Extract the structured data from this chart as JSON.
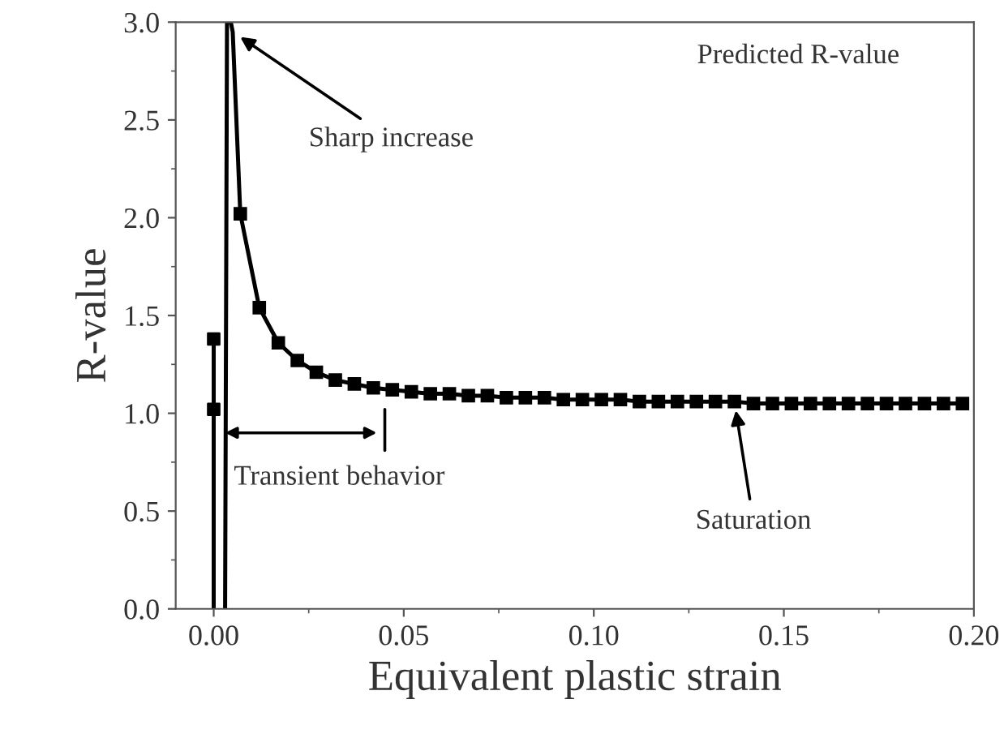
{
  "chart_data": {
    "type": "line",
    "xlabel": "Equivalent plastic strain",
    "ylabel": "R-value",
    "xlim": [
      -0.01,
      0.2
    ],
    "ylim": [
      0.0,
      3.0
    ],
    "xticks": [
      {
        "value": 0,
        "label": "0.00"
      },
      {
        "value": 0.05,
        "label": "0.05"
      },
      {
        "value": 0.1,
        "label": "0.10"
      },
      {
        "value": 0.15,
        "label": "0.15"
      },
      {
        "value": 0.2,
        "label": "0.20"
      }
    ],
    "yticks": [
      {
        "value": 0,
        "label": "0.0"
      },
      {
        "value": 0.5,
        "label": "0.5"
      },
      {
        "value": 1,
        "label": "1.0"
      },
      {
        "value": 1.5,
        "label": "1.5"
      },
      {
        "value": 2,
        "label": "2.0"
      },
      {
        "value": 2.5,
        "label": "2.5"
      },
      {
        "value": 3,
        "label": "3.0"
      }
    ],
    "grid": false,
    "legend": false,
    "line_style": "solid",
    "series": [
      {
        "color": "#000000",
        "marker": "none",
        "x": [
          0.0,
          0.0,
          0.0,
          null,
          0.003,
          0.0035,
          null,
          0.0045,
          0.005,
          0.007
        ],
        "values": [
          1.38,
          1.02,
          0.0,
          null,
          0.0,
          3.0,
          null,
          3.0,
          2.95,
          2.02
        ]
      },
      {
        "color": "#000000",
        "marker": "square",
        "x": [
          0.007,
          0.012,
          0.017,
          0.022,
          0.027,
          0.032,
          0.037,
          0.042,
          0.047,
          0.052,
          0.057,
          0.062,
          0.067,
          0.072,
          0.077,
          0.082,
          0.087,
          0.092,
          0.097,
          0.102,
          0.107,
          0.112,
          0.117,
          0.122,
          0.127,
          0.132,
          0.137,
          0.142,
          0.147,
          0.152,
          0.157,
          0.162,
          0.167,
          0.172,
          0.177,
          0.182,
          0.187,
          0.192,
          0.197
        ],
        "values": [
          2.02,
          1.54,
          1.36,
          1.27,
          1.21,
          1.17,
          1.15,
          1.13,
          1.12,
          1.11,
          1.1,
          1.1,
          1.09,
          1.09,
          1.08,
          1.08,
          1.08,
          1.07,
          1.07,
          1.07,
          1.07,
          1.06,
          1.06,
          1.06,
          1.06,
          1.06,
          1.06,
          1.05,
          1.05,
          1.05,
          1.05,
          1.05,
          1.05,
          1.05,
          1.05,
          1.05,
          1.05,
          1.05,
          1.05
        ]
      },
      {
        "type": "scatter",
        "color": "#000000",
        "marker": "square",
        "x": [
          0.0,
          0.0
        ],
        "values": [
          1.38,
          1.02
        ]
      }
    ],
    "annotations": [
      "Predicted R-value",
      {
        "text": "Sharp increase",
        "x": 0.005,
        "y": 2.95
      },
      "Transient behavior",
      {
        "text": "Saturation",
        "x": 0.137,
        "y": 1.06
      }
    ]
  }
}
